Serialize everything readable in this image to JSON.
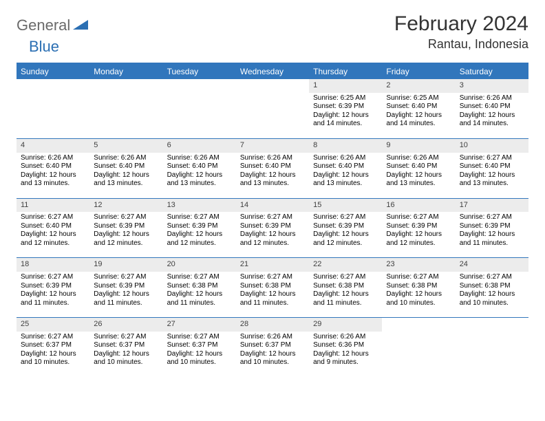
{
  "brand": {
    "part1": "General",
    "part2": "Blue"
  },
  "title": "February 2024",
  "location": "Rantau, Indonesia",
  "colors": {
    "accent": "#3176bc",
    "daynum_bg": "#ececec",
    "text": "#333333",
    "logo_gray": "#6a6a6a"
  },
  "day_headers": [
    "Sunday",
    "Monday",
    "Tuesday",
    "Wednesday",
    "Thursday",
    "Friday",
    "Saturday"
  ],
  "weeks": [
    [
      null,
      null,
      null,
      null,
      {
        "n": "1",
        "sr": "Sunrise: 6:25 AM",
        "ss": "Sunset: 6:39 PM",
        "dl1": "Daylight: 12 hours",
        "dl2": "and 14 minutes."
      },
      {
        "n": "2",
        "sr": "Sunrise: 6:25 AM",
        "ss": "Sunset: 6:40 PM",
        "dl1": "Daylight: 12 hours",
        "dl2": "and 14 minutes."
      },
      {
        "n": "3",
        "sr": "Sunrise: 6:26 AM",
        "ss": "Sunset: 6:40 PM",
        "dl1": "Daylight: 12 hours",
        "dl2": "and 14 minutes."
      }
    ],
    [
      {
        "n": "4",
        "sr": "Sunrise: 6:26 AM",
        "ss": "Sunset: 6:40 PM",
        "dl1": "Daylight: 12 hours",
        "dl2": "and 13 minutes."
      },
      {
        "n": "5",
        "sr": "Sunrise: 6:26 AM",
        "ss": "Sunset: 6:40 PM",
        "dl1": "Daylight: 12 hours",
        "dl2": "and 13 minutes."
      },
      {
        "n": "6",
        "sr": "Sunrise: 6:26 AM",
        "ss": "Sunset: 6:40 PM",
        "dl1": "Daylight: 12 hours",
        "dl2": "and 13 minutes."
      },
      {
        "n": "7",
        "sr": "Sunrise: 6:26 AM",
        "ss": "Sunset: 6:40 PM",
        "dl1": "Daylight: 12 hours",
        "dl2": "and 13 minutes."
      },
      {
        "n": "8",
        "sr": "Sunrise: 6:26 AM",
        "ss": "Sunset: 6:40 PM",
        "dl1": "Daylight: 12 hours",
        "dl2": "and 13 minutes."
      },
      {
        "n": "9",
        "sr": "Sunrise: 6:26 AM",
        "ss": "Sunset: 6:40 PM",
        "dl1": "Daylight: 12 hours",
        "dl2": "and 13 minutes."
      },
      {
        "n": "10",
        "sr": "Sunrise: 6:27 AM",
        "ss": "Sunset: 6:40 PM",
        "dl1": "Daylight: 12 hours",
        "dl2": "and 13 minutes."
      }
    ],
    [
      {
        "n": "11",
        "sr": "Sunrise: 6:27 AM",
        "ss": "Sunset: 6:40 PM",
        "dl1": "Daylight: 12 hours",
        "dl2": "and 12 minutes."
      },
      {
        "n": "12",
        "sr": "Sunrise: 6:27 AM",
        "ss": "Sunset: 6:39 PM",
        "dl1": "Daylight: 12 hours",
        "dl2": "and 12 minutes."
      },
      {
        "n": "13",
        "sr": "Sunrise: 6:27 AM",
        "ss": "Sunset: 6:39 PM",
        "dl1": "Daylight: 12 hours",
        "dl2": "and 12 minutes."
      },
      {
        "n": "14",
        "sr": "Sunrise: 6:27 AM",
        "ss": "Sunset: 6:39 PM",
        "dl1": "Daylight: 12 hours",
        "dl2": "and 12 minutes."
      },
      {
        "n": "15",
        "sr": "Sunrise: 6:27 AM",
        "ss": "Sunset: 6:39 PM",
        "dl1": "Daylight: 12 hours",
        "dl2": "and 12 minutes."
      },
      {
        "n": "16",
        "sr": "Sunrise: 6:27 AM",
        "ss": "Sunset: 6:39 PM",
        "dl1": "Daylight: 12 hours",
        "dl2": "and 12 minutes."
      },
      {
        "n": "17",
        "sr": "Sunrise: 6:27 AM",
        "ss": "Sunset: 6:39 PM",
        "dl1": "Daylight: 12 hours",
        "dl2": "and 11 minutes."
      }
    ],
    [
      {
        "n": "18",
        "sr": "Sunrise: 6:27 AM",
        "ss": "Sunset: 6:39 PM",
        "dl1": "Daylight: 12 hours",
        "dl2": "and 11 minutes."
      },
      {
        "n": "19",
        "sr": "Sunrise: 6:27 AM",
        "ss": "Sunset: 6:39 PM",
        "dl1": "Daylight: 12 hours",
        "dl2": "and 11 minutes."
      },
      {
        "n": "20",
        "sr": "Sunrise: 6:27 AM",
        "ss": "Sunset: 6:38 PM",
        "dl1": "Daylight: 12 hours",
        "dl2": "and 11 minutes."
      },
      {
        "n": "21",
        "sr": "Sunrise: 6:27 AM",
        "ss": "Sunset: 6:38 PM",
        "dl1": "Daylight: 12 hours",
        "dl2": "and 11 minutes."
      },
      {
        "n": "22",
        "sr": "Sunrise: 6:27 AM",
        "ss": "Sunset: 6:38 PM",
        "dl1": "Daylight: 12 hours",
        "dl2": "and 11 minutes."
      },
      {
        "n": "23",
        "sr": "Sunrise: 6:27 AM",
        "ss": "Sunset: 6:38 PM",
        "dl1": "Daylight: 12 hours",
        "dl2": "and 10 minutes."
      },
      {
        "n": "24",
        "sr": "Sunrise: 6:27 AM",
        "ss": "Sunset: 6:38 PM",
        "dl1": "Daylight: 12 hours",
        "dl2": "and 10 minutes."
      }
    ],
    [
      {
        "n": "25",
        "sr": "Sunrise: 6:27 AM",
        "ss": "Sunset: 6:37 PM",
        "dl1": "Daylight: 12 hours",
        "dl2": "and 10 minutes."
      },
      {
        "n": "26",
        "sr": "Sunrise: 6:27 AM",
        "ss": "Sunset: 6:37 PM",
        "dl1": "Daylight: 12 hours",
        "dl2": "and 10 minutes."
      },
      {
        "n": "27",
        "sr": "Sunrise: 6:27 AM",
        "ss": "Sunset: 6:37 PM",
        "dl1": "Daylight: 12 hours",
        "dl2": "and 10 minutes."
      },
      {
        "n": "28",
        "sr": "Sunrise: 6:26 AM",
        "ss": "Sunset: 6:37 PM",
        "dl1": "Daylight: 12 hours",
        "dl2": "and 10 minutes."
      },
      {
        "n": "29",
        "sr": "Sunrise: 6:26 AM",
        "ss": "Sunset: 6:36 PM",
        "dl1": "Daylight: 12 hours",
        "dl2": "and 9 minutes."
      },
      null,
      null
    ]
  ]
}
